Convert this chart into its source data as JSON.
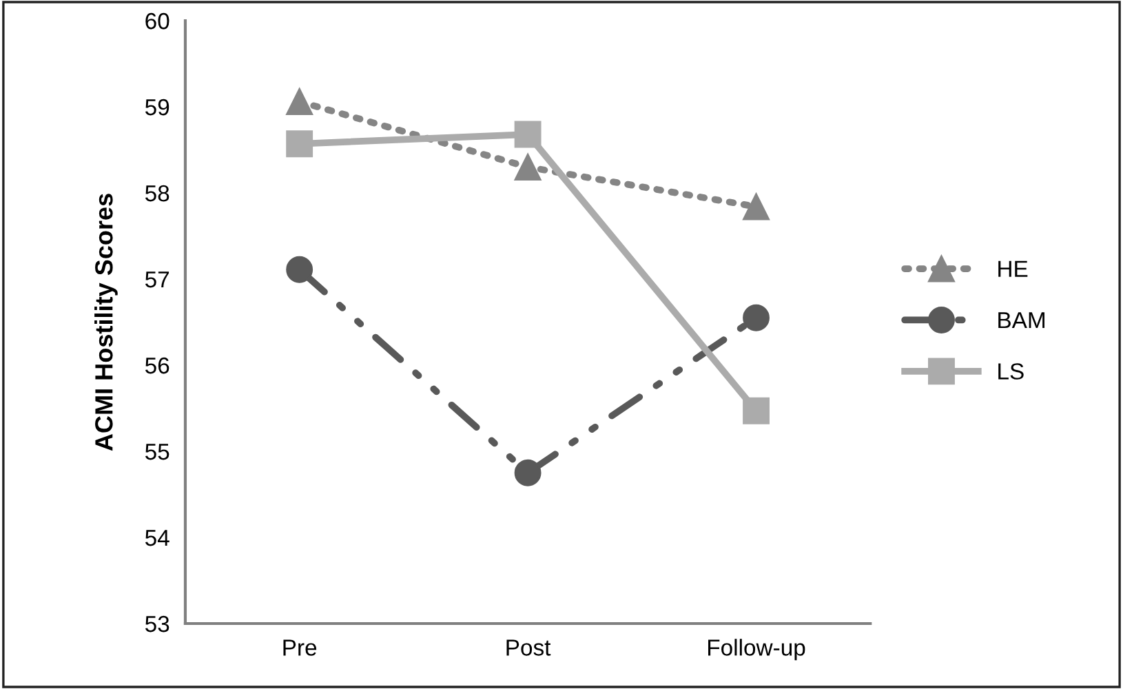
{
  "chart_data": {
    "type": "line",
    "ylabel": "ACMI Hostility Scores",
    "categories": [
      "Pre",
      "Post",
      "Follow-up"
    ],
    "series": [
      {
        "name": "HE",
        "color": "#858585",
        "values": [
          59.06,
          58.3,
          57.84
        ],
        "marker": "triangle",
        "line_style": "dotted"
      },
      {
        "name": "BAM",
        "color": "#595959",
        "values": [
          57.11,
          54.75,
          56.55
        ],
        "marker": "circle",
        "line_style": "dashdotdot"
      },
      {
        "name": "LS",
        "color": "#ababab",
        "values": [
          58.57,
          58.68,
          55.47
        ],
        "marker": "square",
        "line_style": "solid"
      }
    ],
    "ylim": [
      53,
      60
    ],
    "yticks": [
      53,
      54,
      55,
      56,
      57,
      58,
      59,
      60
    ],
    "grid": false,
    "legend": "right"
  }
}
